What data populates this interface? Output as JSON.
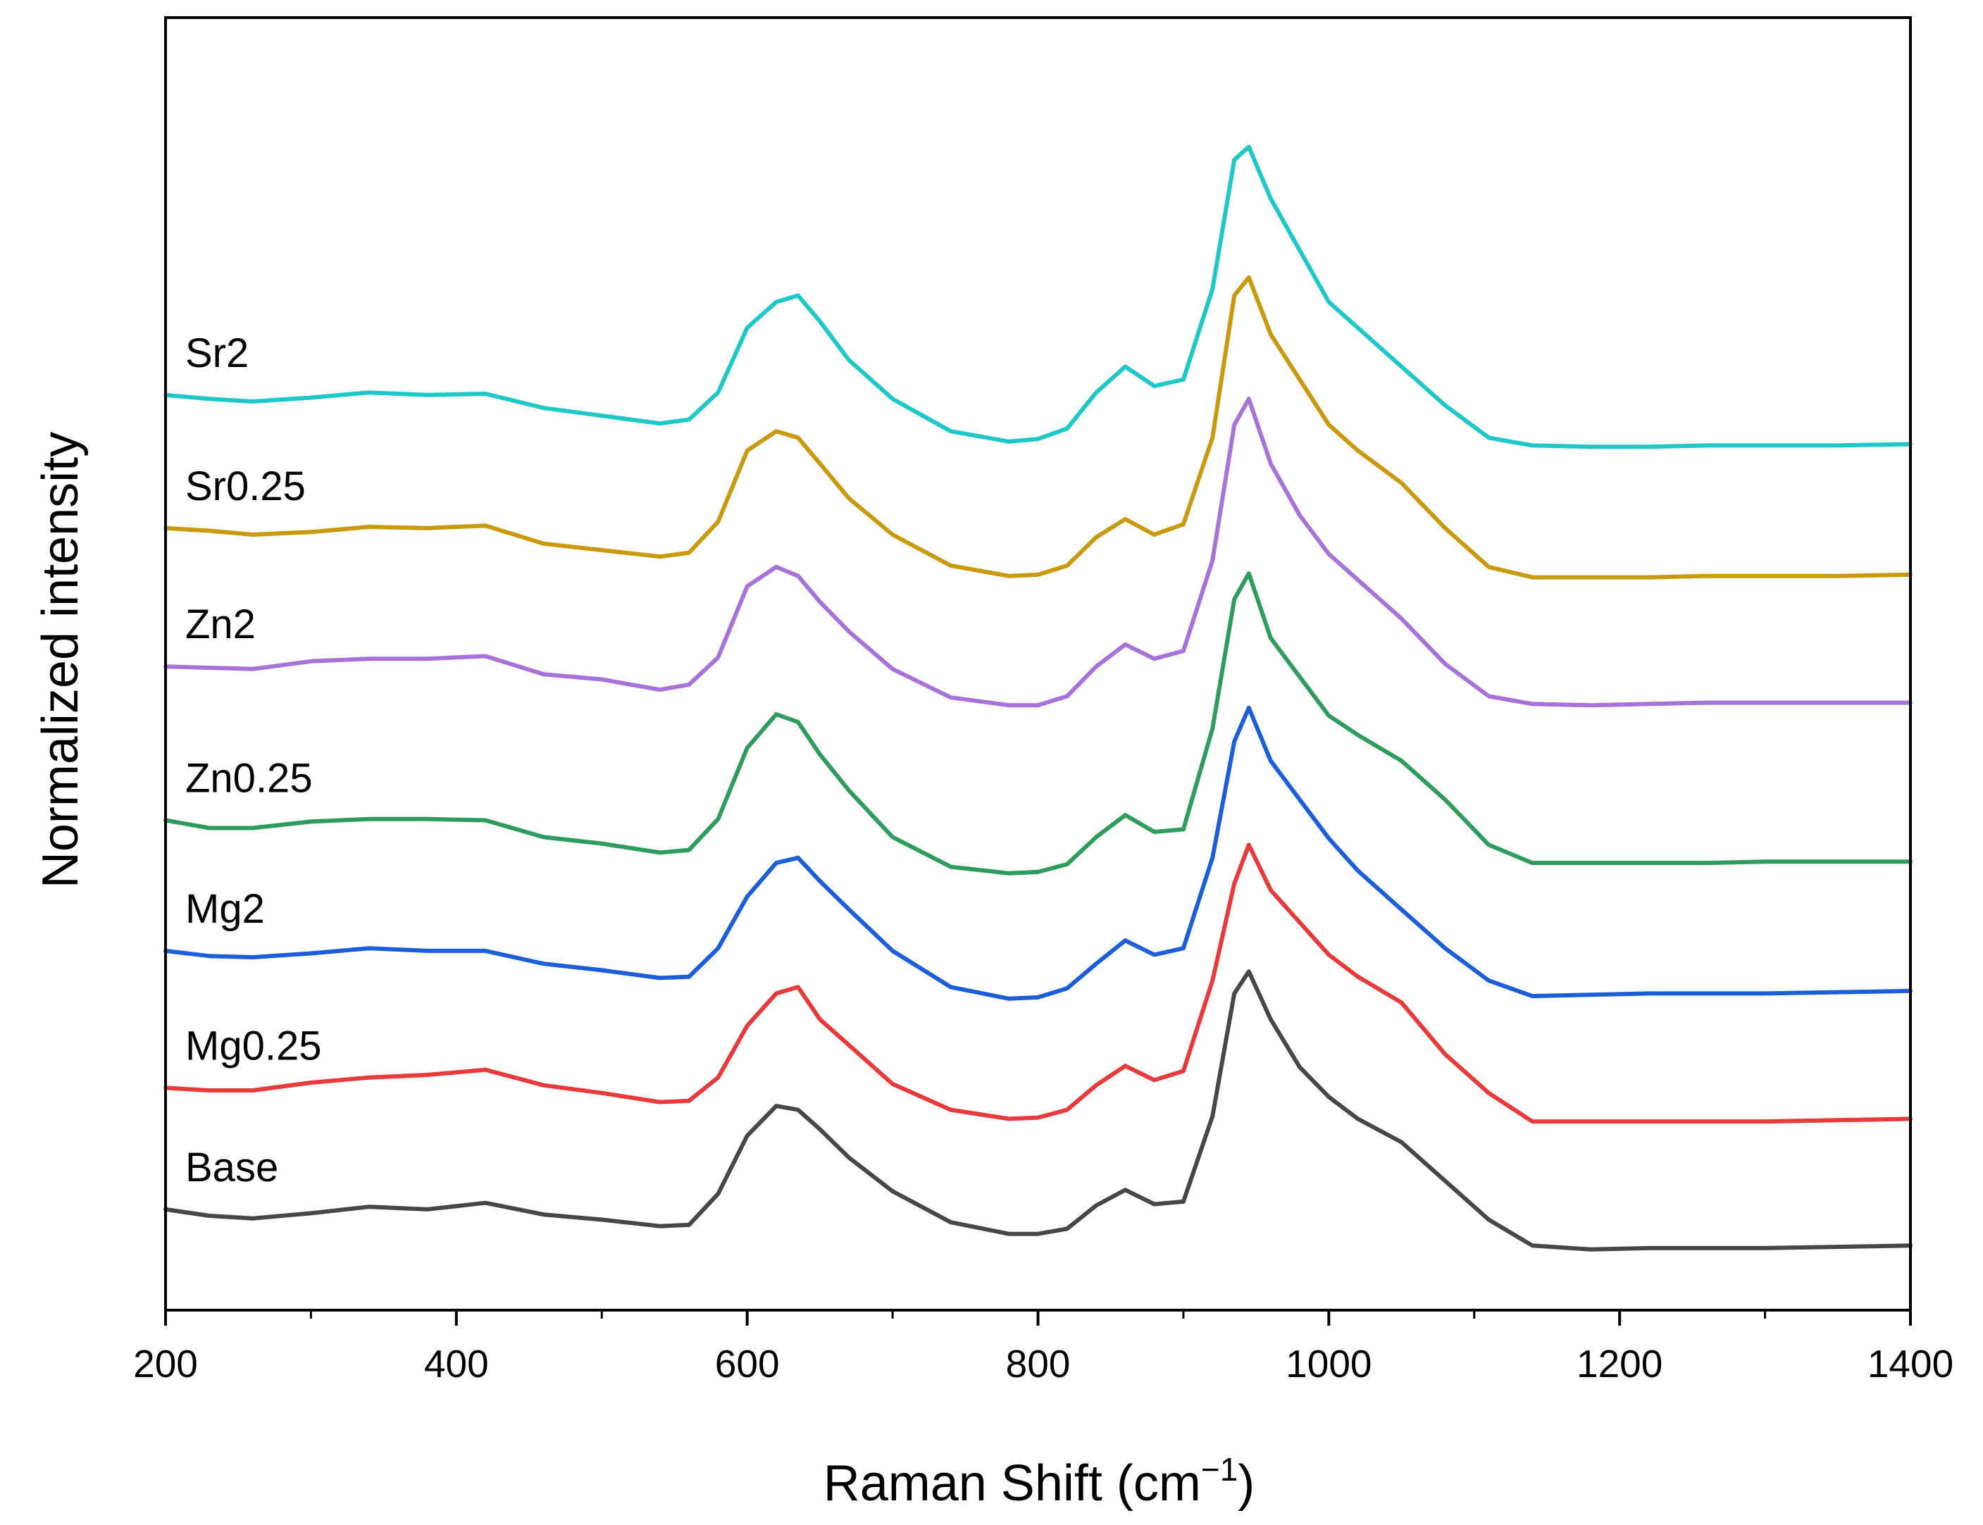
{
  "chart_data": {
    "type": "line",
    "title": "",
    "xlabel": "Raman Shift (cm",
    "xlabel_sup": "−1",
    "xlabel_close": ")",
    "ylabel": "Normalized intensity",
    "xlim": [
      200,
      1400
    ],
    "ylim": [
      0,
      100
    ],
    "x_ticks": [
      "200",
      "400",
      "600",
      "800",
      "1000",
      "1200",
      "1400"
    ],
    "x_tick_values": [
      200,
      400,
      600,
      800,
      1000,
      1200,
      1400
    ],
    "minor_x_ticks": [
      300,
      500,
      700,
      900,
      1100,
      1300
    ],
    "y_ticks": [],
    "grid": false,
    "legend": "inline labels at left of each trace",
    "x": [
      200,
      230,
      260,
      300,
      340,
      380,
      420,
      460,
      500,
      540,
      560,
      580,
      600,
      620,
      635,
      650,
      670,
      700,
      740,
      780,
      800,
      820,
      840,
      860,
      880,
      900,
      920,
      935,
      945,
      960,
      980,
      1000,
      1020,
      1050,
      1080,
      1110,
      1140,
      1180,
      1220,
      1260,
      1300,
      1350,
      1400
    ],
    "series": [
      {
        "name": "Base",
        "color": "#474747",
        "offset": 0,
        "values": [
          7.8,
          7.3,
          7.1,
          7.5,
          8.0,
          7.8,
          8.3,
          7.4,
          7.0,
          6.5,
          6.6,
          9.0,
          13.5,
          15.8,
          15.5,
          14.0,
          11.8,
          9.2,
          6.8,
          5.9,
          5.9,
          6.3,
          8.1,
          9.3,
          8.2,
          8.4,
          15.0,
          24.5,
          26.2,
          22.5,
          18.8,
          16.5,
          14.8,
          13.0,
          10.0,
          7.0,
          5.0,
          4.7,
          4.8,
          4.8,
          4.8,
          4.9,
          5.0
        ]
      },
      {
        "name": "Mg0.25",
        "color": "#e8393b",
        "offset": 0,
        "values": [
          17.2,
          17.0,
          17.0,
          17.6,
          18.0,
          18.2,
          18.6,
          17.4,
          16.8,
          16.1,
          16.2,
          18.0,
          22.0,
          24.5,
          25.0,
          22.5,
          20.5,
          17.5,
          15.5,
          14.8,
          14.9,
          15.5,
          17.4,
          18.9,
          17.8,
          18.5,
          25.5,
          33.0,
          36.0,
          32.5,
          30.0,
          27.5,
          25.8,
          23.8,
          19.8,
          16.8,
          14.6,
          14.6,
          14.6,
          14.6,
          14.6,
          14.7,
          14.8
        ]
      },
      {
        "name": "Mg2",
        "color": "#1c5ed8",
        "offset": 0,
        "values": [
          27.8,
          27.4,
          27.3,
          27.6,
          28.0,
          27.8,
          27.8,
          26.8,
          26.3,
          25.7,
          25.8,
          28.0,
          32.0,
          34.6,
          35.0,
          33.2,
          31.0,
          27.8,
          25.0,
          24.1,
          24.2,
          24.9,
          26.8,
          28.6,
          27.5,
          28.0,
          35.0,
          44.0,
          46.6,
          42.5,
          39.5,
          36.5,
          34.0,
          31.0,
          28.0,
          25.5,
          24.3,
          24.4,
          24.5,
          24.5,
          24.5,
          24.6,
          24.7
        ]
      },
      {
        "name": "Zn0.25",
        "color": "#2e9c5c",
        "offset": 0,
        "values": [
          37.9,
          37.3,
          37.3,
          37.8,
          38.0,
          38.0,
          37.9,
          36.6,
          36.1,
          35.4,
          35.6,
          38.0,
          43.5,
          46.1,
          45.5,
          43.0,
          40.2,
          36.6,
          34.3,
          33.8,
          33.9,
          34.5,
          36.6,
          38.3,
          37.0,
          37.2,
          45.0,
          55.0,
          57.0,
          52.0,
          49.0,
          46.0,
          44.5,
          42.5,
          39.5,
          36.0,
          34.6,
          34.6,
          34.6,
          34.6,
          34.7,
          34.7,
          34.7
        ]
      },
      {
        "name": "Zn2",
        "color": "#a773d8",
        "offset": 0,
        "values": [
          49.8,
          49.7,
          49.6,
          50.2,
          50.4,
          50.4,
          50.6,
          49.2,
          48.8,
          48.0,
          48.4,
          50.5,
          56.0,
          57.5,
          56.8,
          54.8,
          52.5,
          49.6,
          47.4,
          46.8,
          46.8,
          47.5,
          49.8,
          51.5,
          50.4,
          51.0,
          58.0,
          68.5,
          70.5,
          65.5,
          61.5,
          58.5,
          56.5,
          53.5,
          50.0,
          47.5,
          46.9,
          46.8,
          46.9,
          47.0,
          47.0,
          47.0,
          47.0
        ]
      },
      {
        "name": "Sr0.25",
        "color": "#c99a0e",
        "offset": 0,
        "values": [
          60.5,
          60.3,
          60.0,
          60.2,
          60.6,
          60.5,
          60.7,
          59.3,
          58.8,
          58.3,
          58.6,
          61.0,
          66.5,
          68.0,
          67.5,
          65.5,
          62.8,
          60.0,
          57.6,
          56.8,
          56.9,
          57.6,
          59.8,
          61.2,
          60.0,
          60.8,
          67.5,
          78.5,
          79.9,
          75.5,
          72.0,
          68.5,
          66.5,
          64.0,
          60.5,
          57.5,
          56.7,
          56.7,
          56.7,
          56.8,
          56.8,
          56.8,
          56.9
        ]
      },
      {
        "name": "Sr2",
        "color": "#1ec8c8",
        "offset": 0,
        "values": [
          70.8,
          70.5,
          70.3,
          70.6,
          71.0,
          70.8,
          70.9,
          69.8,
          69.2,
          68.6,
          68.9,
          71.0,
          76.0,
          78.0,
          78.5,
          76.5,
          73.5,
          70.5,
          68.0,
          67.2,
          67.4,
          68.2,
          71.0,
          73.0,
          71.5,
          72.0,
          79.0,
          89.0,
          90.0,
          86.0,
          82.0,
          78.0,
          76.0,
          73.0,
          70.0,
          67.5,
          66.9,
          66.8,
          66.8,
          66.9,
          66.9,
          66.9,
          67.0
        ]
      }
    ]
  }
}
